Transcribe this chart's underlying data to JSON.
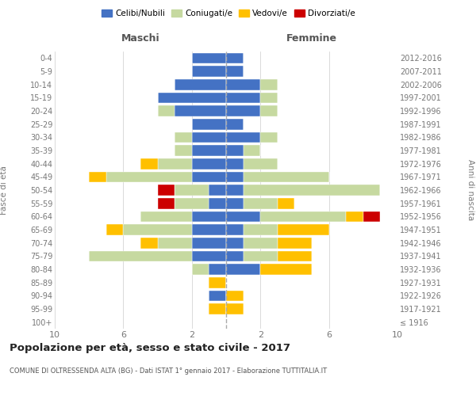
{
  "age_groups": [
    "100+",
    "95-99",
    "90-94",
    "85-89",
    "80-84",
    "75-79",
    "70-74",
    "65-69",
    "60-64",
    "55-59",
    "50-54",
    "45-49",
    "40-44",
    "35-39",
    "30-34",
    "25-29",
    "20-24",
    "15-19",
    "10-14",
    "5-9",
    "0-4"
  ],
  "birth_years": [
    "≤ 1916",
    "1917-1921",
    "1922-1926",
    "1927-1931",
    "1932-1936",
    "1937-1941",
    "1942-1946",
    "1947-1951",
    "1952-1956",
    "1957-1961",
    "1962-1966",
    "1967-1971",
    "1972-1976",
    "1977-1981",
    "1982-1986",
    "1987-1991",
    "1992-1996",
    "1997-2001",
    "2002-2006",
    "2007-2011",
    "2012-2016"
  ],
  "maschi": {
    "celibi": [
      0,
      0,
      1,
      0,
      1,
      2,
      2,
      2,
      2,
      1,
      1,
      2,
      2,
      2,
      2,
      2,
      3,
      4,
      3,
      2,
      2
    ],
    "coniugati": [
      0,
      0,
      0,
      0,
      1,
      6,
      2,
      4,
      3,
      2,
      2,
      5,
      2,
      1,
      1,
      0,
      1,
      0,
      0,
      0,
      0
    ],
    "vedovi": [
      0,
      1,
      0,
      1,
      0,
      0,
      1,
      1,
      0,
      0,
      0,
      1,
      1,
      0,
      0,
      0,
      0,
      0,
      0,
      0,
      0
    ],
    "divorziati": [
      0,
      0,
      0,
      0,
      0,
      0,
      0,
      0,
      0,
      1,
      1,
      0,
      0,
      0,
      0,
      0,
      0,
      0,
      0,
      0,
      0
    ]
  },
  "femmine": {
    "nubili": [
      0,
      0,
      0,
      0,
      2,
      1,
      1,
      1,
      2,
      1,
      1,
      1,
      1,
      1,
      2,
      1,
      2,
      2,
      2,
      1,
      1
    ],
    "coniugate": [
      0,
      0,
      0,
      0,
      0,
      2,
      2,
      2,
      5,
      2,
      8,
      5,
      2,
      1,
      1,
      0,
      1,
      1,
      1,
      0,
      0
    ],
    "vedove": [
      0,
      1,
      1,
      0,
      3,
      2,
      2,
      3,
      1,
      1,
      0,
      0,
      0,
      0,
      0,
      0,
      0,
      0,
      0,
      0,
      0
    ],
    "divorziate": [
      0,
      0,
      0,
      0,
      0,
      0,
      0,
      0,
      1,
      0,
      0,
      0,
      0,
      0,
      0,
      0,
      0,
      0,
      0,
      0,
      0
    ]
  },
  "colors": {
    "celibi": "#4472c4",
    "coniugati": "#c6d9a0",
    "vedovi": "#ffc000",
    "divorziati": "#cc0000"
  },
  "xlim": 10,
  "title": "Popolazione per età, sesso e stato civile - 2017",
  "subtitle": "COMUNE DI OLTRESSENDA ALTA (BG) - Dati ISTAT 1° gennaio 2017 - Elaborazione TUTTITALIA.IT",
  "ylabel_left": "Fasce di età",
  "ylabel_right": "Anni di nascita",
  "legend_labels": [
    "Celibi/Nubili",
    "Coniugati/e",
    "Vedovi/e",
    "Divorziati/e"
  ],
  "maschi_label": "Maschi",
  "femmine_label": "Femmine",
  "bg_color": "#ffffff",
  "grid_color": "#cccccc",
  "text_color": "#777777",
  "title_color": "#222222",
  "subtitle_color": "#555555"
}
